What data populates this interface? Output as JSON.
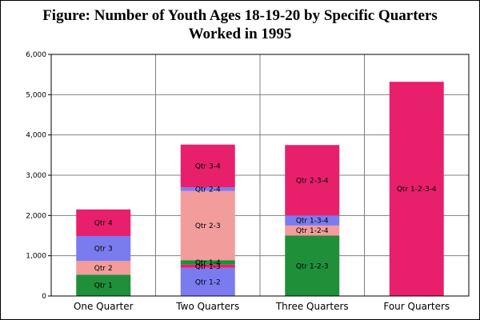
{
  "chart_data": {
    "type": "bar",
    "stacked": true,
    "title_lines": [
      "Figure:  Number of Youth Ages 18-19-20 by Specific Quarters",
      "Worked in 1995"
    ],
    "xlabel": "",
    "ylabel": "",
    "ylim": [
      0,
      6000
    ],
    "yticks": [
      0,
      1000,
      2000,
      3000,
      4000,
      5000,
      6000
    ],
    "ytick_labels": [
      "0",
      "1,000",
      "2,000",
      "3,000",
      "4,000",
      "5,000",
      "6,000"
    ],
    "grid": true,
    "legend": "none",
    "categories": [
      "One Quarter",
      "Two Quarters",
      "Three Quarters",
      "Four Quarters"
    ],
    "stacks": [
      [
        {
          "label": "Qtr 1",
          "value": 530,
          "color": "#1f8f3a"
        },
        {
          "label": "Qtr 2",
          "value": 340,
          "color": "#f29c9c"
        },
        {
          "label": "Qtr 3",
          "value": 620,
          "color": "#7b7bf0"
        },
        {
          "label": "Qtr 4",
          "value": 660,
          "color": "#e8206c"
        }
      ],
      [
        {
          "label": "Qtr 1-2",
          "value": 700,
          "color": "#7b7bf0"
        },
        {
          "label": "Qtr 1-3",
          "value": 80,
          "color": "#e8206c"
        },
        {
          "label": "Qtr 1-4",
          "value": 110,
          "color": "#1f8f3a"
        },
        {
          "label": "Qtr 2-3",
          "value": 1720,
          "color": "#f29c9c"
        },
        {
          "label": "Qtr 2-4",
          "value": 90,
          "color": "#7b7bf0"
        },
        {
          "label": "Qtr 3-4",
          "value": 1060,
          "color": "#e8206c"
        }
      ],
      [
        {
          "label": "Qtr 1-2-3",
          "value": 1500,
          "color": "#1f8f3a"
        },
        {
          "label": "Qtr 1-2-4",
          "value": 250,
          "color": "#f29c9c"
        },
        {
          "label": "Qtr 1-3-4",
          "value": 250,
          "color": "#7b7bf0"
        },
        {
          "label": "Qtr 2-3-4",
          "value": 1750,
          "color": "#e8206c"
        }
      ],
      [
        {
          "label": "Qtr 1-2-3-4",
          "value": 5320,
          "color": "#e8206c"
        }
      ]
    ],
    "colors": {
      "plot_background": "#ffffff",
      "gridline": "#808080",
      "axis": "#000000"
    }
  }
}
